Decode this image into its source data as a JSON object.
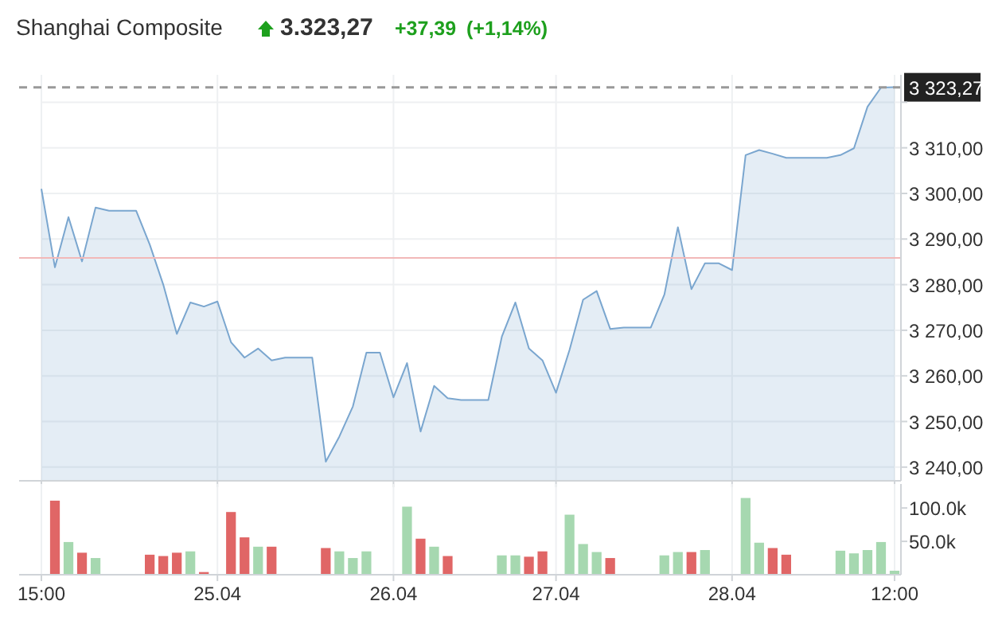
{
  "chart_data": [
    {
      "type": "area",
      "title": "Shanghai Composite",
      "annotations": [
        "3.323,27",
        "+37,39",
        "(+1,14%)"
      ],
      "categories": [
        null,
        null,
        null,
        null,
        null,
        null,
        null,
        null,
        null,
        null,
        null,
        null,
        null,
        null,
        null,
        null,
        null,
        null,
        null,
        null,
        null,
        null,
        null,
        null,
        null,
        null,
        null,
        null,
        null,
        null,
        null,
        null,
        null,
        null,
        null,
        null,
        null,
        null,
        null,
        null,
        null,
        null,
        null,
        null,
        null,
        null,
        null,
        null,
        null,
        null,
        null,
        null,
        null,
        null,
        null,
        null,
        null,
        null,
        null,
        null,
        null,
        null,
        null,
        null
      ],
      "series": [
        {
          "color": "#7aa6cf",
          "values": [
            3301.0,
            3283.8,
            3294.8,
            3285.1,
            3296.9,
            3296.2,
            3296.2,
            3296.2,
            3288.8,
            3280,
            3269.2,
            3276.1,
            3275.2,
            3276.3,
            3267.4,
            3264,
            3266,
            3263.4,
            3264,
            3264,
            3264,
            3241.2,
            3246.7,
            3253.3,
            3265.1,
            3265.1,
            3255.3,
            3262.8,
            3247.8,
            3257.8,
            3255.1,
            3254.7,
            3254.7,
            3254.7,
            3268.6,
            3276.1,
            3266,
            3263.4,
            3256.3,
            3265.7,
            3276.7,
            3278.6,
            3270.3,
            3270.6,
            3270.6,
            3270.6,
            3277.8,
            3292.6,
            3279,
            3284.7,
            3284.7,
            3283.2,
            3308.4,
            3309.5,
            3308.7,
            3307.8,
            3307.8,
            3307.8,
            3307.8,
            3308.4,
            3309.9,
            3319,
            3323.2,
            3323.3
          ]
        }
      ],
      "ylim": [
        3237,
        3326
      ],
      "yticks": [
        {
          "value": 3240,
          "label": "3 240,00"
        },
        {
          "value": 3250,
          "label": "3 250,00"
        },
        {
          "value": 3260,
          "label": "3 260,00"
        },
        {
          "value": 3270,
          "label": "3 270,00"
        },
        {
          "value": 3280,
          "label": "3 280,00"
        },
        {
          "value": 3290,
          "label": "3 290,00"
        },
        {
          "value": 3300,
          "label": "3 300,00"
        },
        {
          "value": 3310,
          "label": "3 310,00"
        },
        {
          "value": 3320,
          "label": null
        }
      ],
      "grid": true,
      "tick_labels": "y",
      "ref_lines": [
        {
          "axis": "y",
          "value": 3323.27,
          "label": "3 323,27",
          "color": "#999999",
          "line_style": "dashed"
        },
        {
          "axis": "y",
          "value": 3285.88,
          "color": "#f2b8b8",
          "line_style": "solid"
        }
      ]
    },
    {
      "type": "bar",
      "categories": [
        "15:00",
        null,
        null,
        null,
        null,
        null,
        null,
        null,
        null,
        null,
        null,
        null,
        null,
        "25.04",
        null,
        null,
        null,
        null,
        null,
        null,
        null,
        null,
        null,
        null,
        null,
        null,
        "26.04",
        null,
        null,
        null,
        null,
        null,
        null,
        null,
        null,
        null,
        null,
        null,
        "27.04",
        null,
        null,
        null,
        null,
        null,
        null,
        null,
        null,
        null,
        null,
        null,
        null,
        "28.04",
        null,
        null,
        null,
        null,
        null,
        null,
        null,
        null,
        null,
        null,
        null,
        "12:00"
      ],
      "values": [
        null,
        111000,
        49000,
        33000,
        25000,
        null,
        null,
        null,
        30000,
        28000,
        33000,
        35000,
        4000,
        null,
        94000,
        56000,
        42000,
        42000,
        null,
        null,
        null,
        40000,
        35000,
        25000,
        35000,
        null,
        null,
        102000,
        54000,
        42000,
        28000,
        null,
        null,
        null,
        29000,
        29000,
        27000,
        35000,
        null,
        90000,
        46000,
        34000,
        25000,
        null,
        null,
        null,
        29000,
        34000,
        34000,
        37000,
        null,
        null,
        115000,
        48000,
        40000,
        30000,
        null,
        null,
        null,
        36000,
        32000,
        37000,
        49000,
        6000
      ],
      "colors": [
        null,
        "#e06666",
        "#a6d8b0",
        "#e06666",
        "#a6d8b0",
        null,
        null,
        null,
        "#e06666",
        "#e06666",
        "#e06666",
        "#a6d8b0",
        "#e06666",
        null,
        "#e06666",
        "#e06666",
        "#a6d8b0",
        "#e06666",
        null,
        null,
        null,
        "#e06666",
        "#a6d8b0",
        "#a6d8b0",
        "#a6d8b0",
        null,
        null,
        "#a6d8b0",
        "#e06666",
        "#a6d8b0",
        "#e06666",
        null,
        null,
        null,
        "#a6d8b0",
        "#a6d8b0",
        "#e06666",
        "#e06666",
        null,
        "#a6d8b0",
        "#a6d8b0",
        "#a6d8b0",
        "#e06666",
        null,
        null,
        null,
        "#a6d8b0",
        "#a6d8b0",
        "#e06666",
        "#a6d8b0",
        null,
        null,
        "#a6d8b0",
        "#a6d8b0",
        "#e06666",
        "#e06666",
        null,
        null,
        null,
        "#a6d8b0",
        "#a6d8b0",
        "#a6d8b0",
        "#a6d8b0",
        "#a6d8b0"
      ],
      "ylim": [
        0,
        136000
      ],
      "yticks": [
        {
          "value": 50000,
          "label": "50.0k"
        },
        {
          "value": 100000,
          "label": "100.0k"
        }
      ],
      "grid": "x"
    }
  ]
}
